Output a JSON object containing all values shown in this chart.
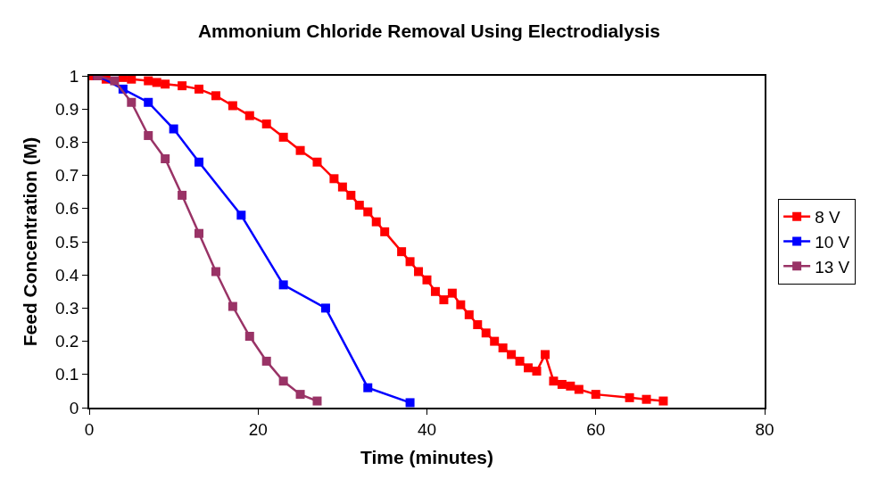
{
  "chart_data": {
    "type": "line",
    "title": "Ammonium Chloride Removal Using Electrodialysis",
    "xlabel": "Time (minutes)",
    "ylabel": "Feed Concentration (M)",
    "xlim": [
      0,
      80
    ],
    "xticks": [
      0,
      20,
      40,
      60,
      80
    ],
    "ylim": [
      0,
      1
    ],
    "yticks": [
      0,
      0.1,
      0.2,
      0.3,
      0.4,
      0.5,
      0.6,
      0.7,
      0.8,
      0.9,
      1
    ],
    "legend": "right",
    "marker": "square",
    "line_style": "solid",
    "series": [
      {
        "name": "8 V",
        "color": "#ff0000",
        "x": [
          0,
          2,
          4,
          5,
          7,
          8,
          9,
          11,
          13,
          15,
          17,
          19,
          21,
          23,
          25,
          27,
          29,
          30,
          31,
          32,
          33,
          34,
          35,
          37,
          38,
          39,
          40,
          41,
          42,
          43,
          44,
          45,
          46,
          47,
          48,
          49,
          50,
          51,
          52,
          53,
          54,
          55,
          56,
          57,
          58,
          60,
          64,
          66,
          68
        ],
        "values": [
          1.0,
          0.99,
          0.995,
          0.99,
          0.985,
          0.98,
          0.975,
          0.97,
          0.96,
          0.94,
          0.91,
          0.88,
          0.855,
          0.815,
          0.775,
          0.74,
          0.69,
          0.665,
          0.64,
          0.61,
          0.59,
          0.56,
          0.53,
          0.47,
          0.44,
          0.41,
          0.385,
          0.35,
          0.325,
          0.345,
          0.31,
          0.28,
          0.25,
          0.225,
          0.2,
          0.18,
          0.16,
          0.14,
          0.12,
          0.11,
          0.16,
          0.08,
          0.07,
          0.065,
          0.055,
          0.04,
          0.03,
          0.025,
          0.02
        ]
      },
      {
        "name": "10 V",
        "color": "#0000ff",
        "x": [
          1,
          4,
          7,
          10,
          13,
          18,
          23,
          28,
          33,
          38
        ],
        "values": [
          1.0,
          0.96,
          0.92,
          0.84,
          0.74,
          0.58,
          0.37,
          0.3,
          0.06,
          0.015
        ]
      },
      {
        "name": "13 V",
        "color": "#993366",
        "x": [
          1,
          3,
          5,
          7,
          9,
          11,
          13,
          15,
          17,
          19,
          21,
          23,
          25,
          27
        ],
        "values": [
          1.0,
          0.985,
          0.92,
          0.82,
          0.75,
          0.64,
          0.525,
          0.41,
          0.305,
          0.215,
          0.14,
          0.08,
          0.04,
          0.02
        ]
      }
    ]
  }
}
